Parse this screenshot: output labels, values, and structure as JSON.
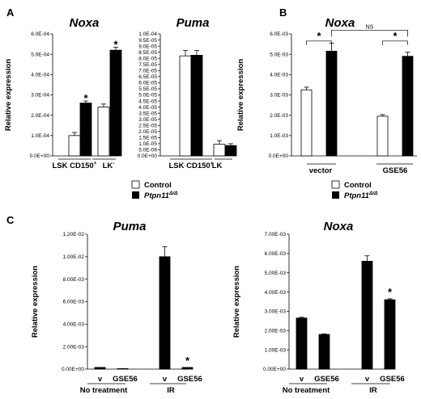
{
  "panel_labels": [
    "A",
    "B",
    "C"
  ],
  "legend": {
    "control_label": "Control",
    "mutant_label": "Ptpn11",
    "mutant_superscript": "Δ/Δ"
  },
  "chart_data": [
    {
      "id": "A-noxa",
      "type": "bar",
      "title": "Noxa",
      "ylabel": "Relative expression",
      "ylim": [
        0,
        0.0006
      ],
      "yticks": [
        "0.0E+00",
        "1.0E-04",
        "2.0E-04",
        "3.0E-04",
        "4.0E-04",
        "5.0E-04",
        "6.0E-04"
      ],
      "group_labels": [
        {
          "text": "LSK CD150",
          "sup": "+"
        },
        {
          "text": "LK",
          "sup": "-"
        }
      ],
      "series": [
        {
          "name": "Control",
          "values": [
            0.0001,
            0.00024
          ],
          "errors": [
            1.5e-05,
            1.5e-05
          ]
        },
        {
          "name": "Ptpn11Δ/Δ",
          "values": [
            0.00026,
            0.00052
          ],
          "errors": [
            1e-05,
            1.5e-05
          ]
        }
      ],
      "annotations": [
        {
          "text": "*",
          "group": 0,
          "series": 1
        },
        {
          "text": "*",
          "group": 1,
          "series": 1
        }
      ],
      "brackets": []
    },
    {
      "id": "A-puma",
      "type": "bar",
      "title": "Puma",
      "ylabel": "",
      "ylim": [
        0,
        0.0001
      ],
      "yticks": [
        "0.0E+00",
        "5.0E-06",
        "1.0E-05",
        "1.5E-05",
        "2.0E-05",
        "2.5E-05",
        "3.0E-05",
        "3.5E-05",
        "4.0E-05",
        "4.5E-05",
        "5.0E-05",
        "5.5E-05",
        "6.0E-05",
        "6.5E-05",
        "7.0E-05",
        "7.5E-05",
        "8.0E-05",
        "8.5E-05",
        "9.0E-05",
        "9.5E-05",
        "1.0E-04"
      ],
      "group_labels": [
        {
          "text": "LSK CD150",
          "sup": "+"
        },
        {
          "text": "LK",
          "sup": ""
        }
      ],
      "series": [
        {
          "name": "Control",
          "values": [
            8.2e-05,
            9.5e-06
          ],
          "errors": [
            4.5e-06,
            3e-06
          ]
        },
        {
          "name": "Ptpn11Δ/Δ",
          "values": [
            8.25e-05,
            8.5e-06
          ],
          "errors": [
            4e-06,
            1.5e-06
          ]
        }
      ],
      "annotations": [],
      "brackets": []
    },
    {
      "id": "B-noxa",
      "type": "bar",
      "title": "Noxa",
      "ylabel": "Relative expression",
      "ylim": [
        0,
        0.006
      ],
      "yticks": [
        "0.0E+00",
        "1.0E-03",
        "2.0E-03",
        "3.0E-03",
        "4.0E-03",
        "5.0E-03",
        "6.0E-03"
      ],
      "group_labels": [
        {
          "text": "vector",
          "sup": ""
        },
        {
          "text": "GSE56",
          "sup": ""
        }
      ],
      "series": [
        {
          "name": "Control",
          "values": [
            0.00325,
            0.00195
          ],
          "errors": [
            0.00013,
            8e-05
          ]
        },
        {
          "name": "Ptpn11Δ/Δ",
          "values": [
            0.00515,
            0.0049
          ],
          "errors": [
            0.0004,
            0.0002
          ]
        }
      ],
      "annotations": [],
      "brackets": [
        {
          "text": "*",
          "from": [
            0,
            0
          ],
          "to": [
            0,
            1
          ],
          "level": 0.00565
        },
        {
          "text": "*",
          "from": [
            1,
            0
          ],
          "to": [
            1,
            1
          ],
          "level": 0.00565
        },
        {
          "text": "NS",
          "from": [
            0,
            1
          ],
          "to": [
            1,
            1
          ],
          "level": 0.00575
        }
      ]
    },
    {
      "id": "C-puma",
      "type": "bar",
      "title": "Puma",
      "ylabel": "Relative expression",
      "ylim": [
        0,
        0.012
      ],
      "yticks": [
        "0.00E+00",
        "2.00E-03",
        "4.00E-03",
        "6.00E-03",
        "8.00E-03",
        "1.00E-02",
        "1.20E-02"
      ],
      "categories": [
        "v",
        "GSE56",
        "v",
        "GSE56"
      ],
      "values": [
        0.00015,
        5e-05,
        0.01,
        0.00015
      ],
      "errors": [
        0,
        0,
        0.0009,
        0
      ],
      "group_labels": [
        {
          "text": "No treatment",
          "sup": ""
        },
        {
          "text": "IR",
          "sup": ""
        }
      ],
      "annotations": [
        {
          "text": "*",
          "index": 3
        }
      ]
    },
    {
      "id": "C-noxa",
      "type": "bar",
      "title": "Noxa",
      "ylabel": "Relative expression",
      "ylim": [
        0,
        0.007
      ],
      "yticks": [
        "0.00E+00",
        "1.00E-03",
        "2.00E-03",
        "3.00E-03",
        "4.00E-03",
        "5.00E-03",
        "6.00E-03",
        "7.00E-03"
      ],
      "categories": [
        "v",
        "GSE56",
        "v",
        "GSE56"
      ],
      "values": [
        0.00265,
        0.0018,
        0.0056,
        0.0036
      ],
      "errors": [
        4e-05,
        3e-05,
        0.00028,
        5e-05
      ],
      "group_labels": [
        {
          "text": "No treatment",
          "sup": ""
        },
        {
          "text": "IR",
          "sup": ""
        }
      ],
      "annotations": [
        {
          "text": "*",
          "index": 3
        }
      ]
    }
  ]
}
